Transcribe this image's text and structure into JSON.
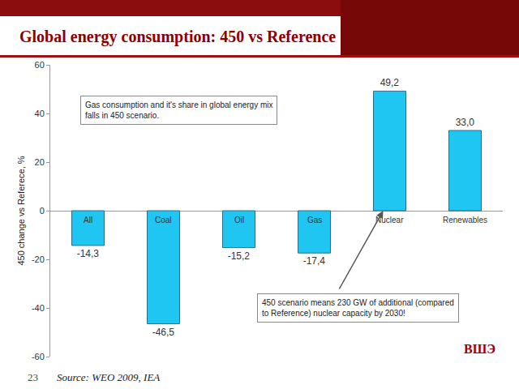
{
  "slide": {
    "title": "Global energy consumption: 450 vs Reference",
    "page_number": "23",
    "source": "Source: WEO 2009, IEA",
    "logo": "ВШЭ"
  },
  "chart_data": {
    "type": "bar",
    "ylabel": "450 change vs Referece, %",
    "categories": [
      "All",
      "Coal",
      "Oil",
      "Gas",
      "Nuclear",
      "Renewables"
    ],
    "values": [
      -14.3,
      -46.5,
      -15.2,
      -17.4,
      49.2,
      33.0
    ],
    "value_labels": [
      "-14,3",
      "-46,5",
      "-15,2",
      "-17,4",
      "49,2",
      "33,0"
    ],
    "data_labels": true,
    "color": "#1fc6f2",
    "ylim": [
      -60,
      60
    ],
    "yticks": [
      -60,
      -40,
      -20,
      0,
      20,
      40,
      60
    ],
    "grid": false,
    "annotations": [
      {
        "text": "Gas consumption and it's share in global energy mix\nfalls in 450 scenario."
      },
      {
        "text": "450 scenario means 230 GW of additional (compared\nto Reference) nuclear capacity by 2030!",
        "category": "Nuclear"
      }
    ]
  }
}
